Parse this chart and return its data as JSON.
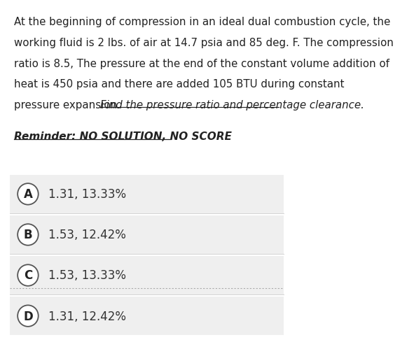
{
  "background_color": "#ffffff",
  "question_lines": [
    "At the beginning of compression in an ideal dual combustion cycle, the",
    "working fluid is 2 lbs. of air at 14.7 psia and 85 deg. F. The compression",
    "ratio is 8.5, The pressure at the end of the constant volume addition of",
    "heat is 450 psia and there are added 105 BTU during constant",
    "pressure expansion. "
  ],
  "italic_underline_text": "Find the pressure ratio and percentage clearance.",
  "reminder_text": "Reminder: NO SOLUTION, NO SCORE",
  "options": [
    {
      "letter": "A",
      "text": "1.31, 13.33%"
    },
    {
      "letter": "B",
      "text": "1.53, 12.42%"
    },
    {
      "letter": "C",
      "text": "1.53, 13.33%"
    },
    {
      "letter": "D",
      "text": "1.31, 12.42%"
    }
  ],
  "option_bg_color": "#efefef",
  "option_text_color": "#333333",
  "circle_edge_color": "#555555",
  "circle_face_color": "#ffffff",
  "text_color": "#222222",
  "font_size_question": 10.8,
  "font_size_options": 12.0,
  "font_size_reminder": 11.0,
  "dashed_line_color": "#aaaaaa",
  "fig_width": 5.36,
  "fig_height": 4.62
}
